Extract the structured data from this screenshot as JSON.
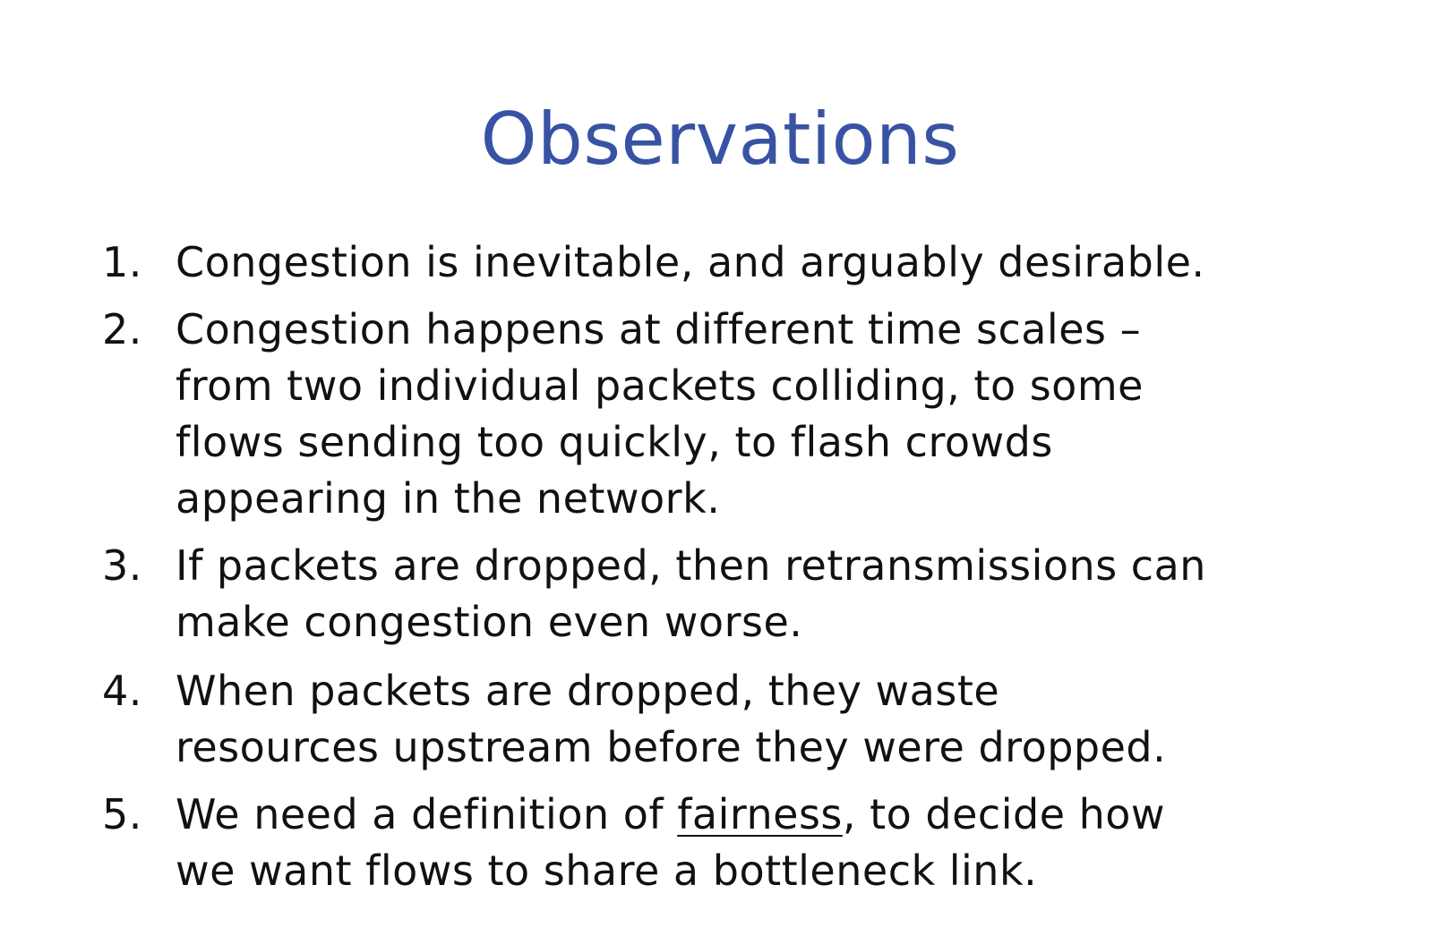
{
  "slide": {
    "title": "Observations",
    "title_color": "#3852a4",
    "items": [
      {
        "number": "1.",
        "lines": [
          "Congestion is inevitable, and arguably desirable."
        ]
      },
      {
        "number": "2.",
        "lines": [
          "Congestion happens at different time scales –",
          "from two individual packets colliding, to some",
          "flows sending too quickly, to flash crowds",
          "appearing in the network."
        ]
      },
      {
        "number": "3.",
        "lines": [
          "If packets are dropped, then retransmissions can",
          "make congestion even worse."
        ]
      },
      {
        "number": "4.",
        "lines": [
          "When packets are dropped, they waste",
          "resources upstream before they were dropped."
        ]
      },
      {
        "number": "5.",
        "line1_before": "We need a definition of ",
        "line1_underlined": "fairness",
        "line1_after": ", to decide how",
        "line2": "we want flows to share a bottleneck link."
      }
    ]
  }
}
